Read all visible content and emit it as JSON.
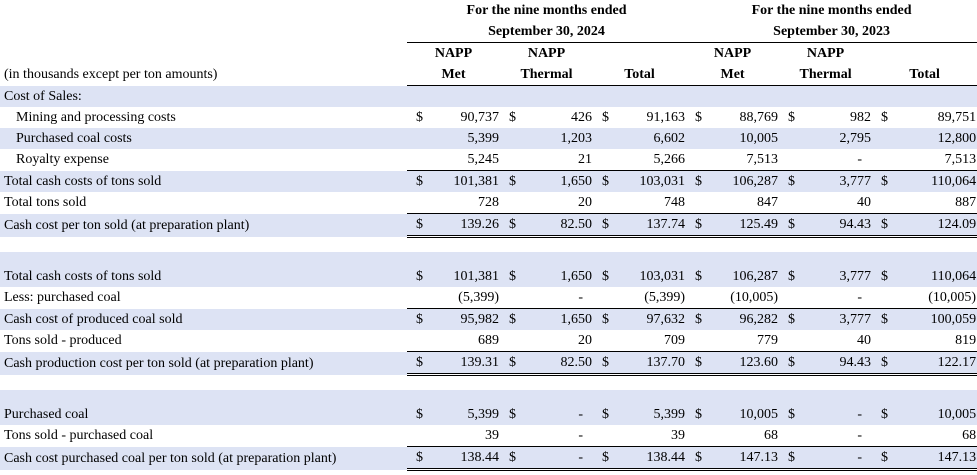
{
  "header": {
    "period_2024_line1": "For the nine months ended",
    "period_2024_line2": "September 30, 2024",
    "period_2023_line1": "For the nine months ended",
    "period_2023_line2": "September 30, 2023",
    "col_met_1": "NAPP",
    "col_met_2": "Met",
    "col_thermal_1": "NAPP",
    "col_thermal_2": "Thermal",
    "col_total": "Total",
    "units_note": "(in thousands except per ton amounts)"
  },
  "rows": [
    {
      "label": "Cost of Sales:",
      "vals": [
        "",
        "",
        "",
        "",
        "",
        ""
      ],
      "dollar": false
    },
    {
      "label": "Mining and processing costs",
      "vals": [
        "90,737",
        "426",
        "91,163",
        "88,769",
        "982",
        "89,751"
      ],
      "dollar": true
    },
    {
      "label": "Purchased coal costs",
      "vals": [
        "5,399",
        "1,203",
        "6,602",
        "10,005",
        "2,795",
        "12,800"
      ],
      "dollar": false
    },
    {
      "label": "Royalty expense",
      "vals": [
        "5,245",
        "21",
        "5,266",
        "7,513",
        "-",
        "7,513"
      ],
      "dollar": false
    },
    {
      "label": "Total cash costs of tons sold",
      "vals": [
        "101,381",
        "1,650",
        "103,031",
        "106,287",
        "3,777",
        "110,064"
      ],
      "dollar": true
    },
    {
      "label": "Total tons sold",
      "vals": [
        "728",
        "20",
        "748",
        "847",
        "40",
        "887"
      ],
      "dollar": false
    },
    {
      "label": "Cash cost per ton sold (at preparation plant)",
      "vals": [
        "139.26",
        "82.50",
        "137.74",
        "125.49",
        "94.43",
        "124.09"
      ],
      "dollar": true
    },
    {
      "label": "Total cash costs of tons sold",
      "vals": [
        "101,381",
        "1,650",
        "103,031",
        "106,287",
        "3,777",
        "110,064"
      ],
      "dollar": true
    },
    {
      "label": "Less: purchased coal",
      "vals": [
        "(5,399)",
        "-",
        "(5,399)",
        "(10,005)",
        "-",
        "(10,005)"
      ],
      "dollar": false
    },
    {
      "label": "Cash cost of produced coal sold",
      "vals": [
        "95,982",
        "1,650",
        "97,632",
        "96,282",
        "3,777",
        "100,059"
      ],
      "dollar": true
    },
    {
      "label": "Tons sold - produced",
      "vals": [
        "689",
        "20",
        "709",
        "779",
        "40",
        "819"
      ],
      "dollar": false
    },
    {
      "label": "Cash production cost per ton sold (at preparation plant)",
      "vals": [
        "139.31",
        "82.50",
        "137.70",
        "123.60",
        "94.43",
        "122.17"
      ],
      "dollar": true
    },
    {
      "label": "Purchased coal",
      "vals": [
        "5,399",
        "-",
        "5,399",
        "10,005",
        "-",
        "10,005"
      ],
      "dollar": true
    },
    {
      "label": "Tons sold - purchased coal",
      "vals": [
        "39",
        "-",
        "39",
        "68",
        "-",
        "68"
      ],
      "dollar": false
    },
    {
      "label": "Cash cost purchased coal per ton sold (at preparation plant)",
      "vals": [
        "138.44",
        "-",
        "138.44",
        "147.13",
        "-",
        "147.13"
      ],
      "dollar": true
    }
  ],
  "currency_symbol": "$"
}
